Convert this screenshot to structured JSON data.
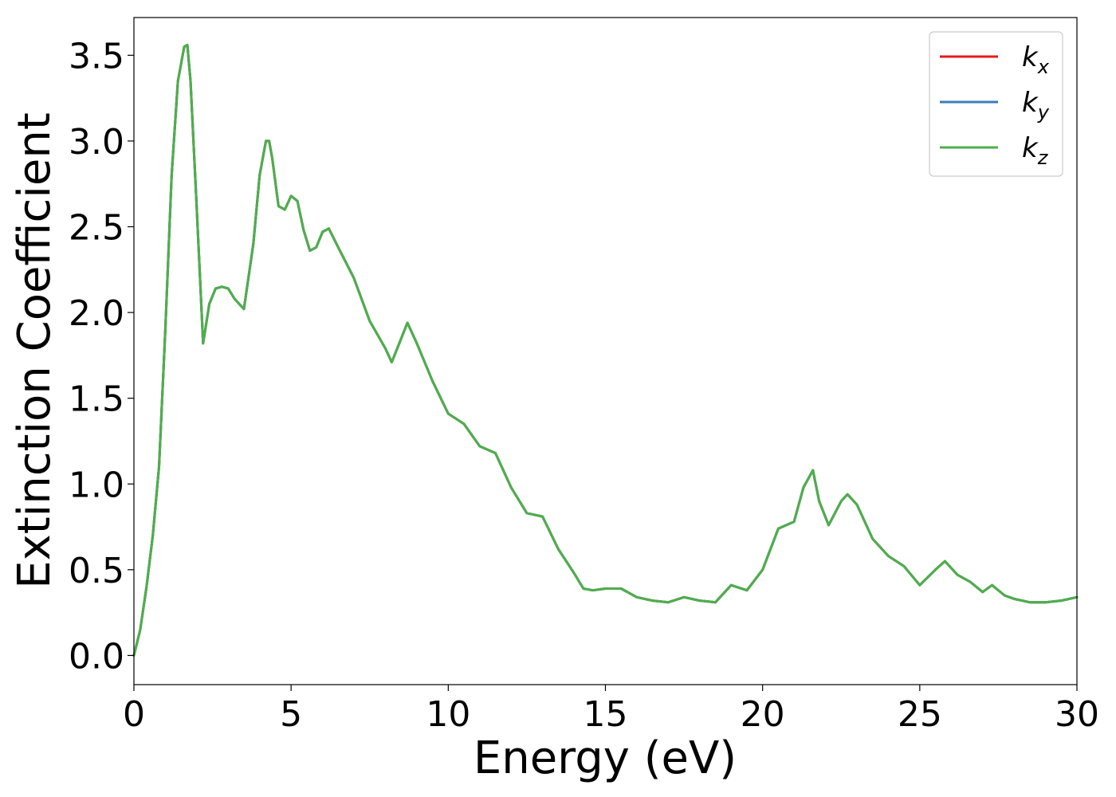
{
  "chart_data": {
    "type": "line",
    "title": "",
    "xlabel": "Energy (eV)",
    "ylabel": "Extinction Coefficient",
    "xlim": [
      0,
      30
    ],
    "ylim": [
      -0.17,
      3.72
    ],
    "xticks": [
      0,
      5,
      10,
      15,
      20,
      25,
      30
    ],
    "xtick_labels": [
      "0",
      "5",
      "10",
      "15",
      "20",
      "25",
      "30"
    ],
    "yticks": [
      0.0,
      0.5,
      1.0,
      1.5,
      2.0,
      2.5,
      3.0,
      3.5
    ],
    "ytick_labels": [
      "0.0",
      "0.5",
      "1.0",
      "1.5",
      "2.0",
      "2.5",
      "3.0",
      "3.5"
    ],
    "grid": false,
    "legend_position": "top-right",
    "x": [
      0,
      0.2,
      0.4,
      0.6,
      0.8,
      1.0,
      1.2,
      1.4,
      1.6,
      1.7,
      1.8,
      2.0,
      2.2,
      2.4,
      2.6,
      2.8,
      3.0,
      3.2,
      3.5,
      3.8,
      4.0,
      4.2,
      4.3,
      4.4,
      4.6,
      4.8,
      5.0,
      5.2,
      5.4,
      5.6,
      5.8,
      6.0,
      6.2,
      6.5,
      7.0,
      7.5,
      8.0,
      8.2,
      8.4,
      8.7,
      9.0,
      9.5,
      10.0,
      10.5,
      11.0,
      11.5,
      12.0,
      12.5,
      13.0,
      13.5,
      14.0,
      14.3,
      14.6,
      15.0,
      15.5,
      16.0,
      16.5,
      17.0,
      17.5,
      18.0,
      18.5,
      19.0,
      19.5,
      20.0,
      20.5,
      21.0,
      21.3,
      21.6,
      21.8,
      22.1,
      22.5,
      22.7,
      23.0,
      23.5,
      24.0,
      24.5,
      25.0,
      25.5,
      25.8,
      26.2,
      26.6,
      27.0,
      27.3,
      27.7,
      28.0,
      28.5,
      29.0,
      29.5,
      30.0
    ],
    "series": [
      {
        "name": "k_x",
        "color": "#e41a1c",
        "values": [
          0.0,
          0.15,
          0.4,
          0.7,
          1.1,
          1.9,
          2.8,
          3.35,
          3.55,
          3.56,
          3.35,
          2.6,
          1.82,
          2.05,
          2.14,
          2.15,
          2.14,
          2.08,
          2.02,
          2.4,
          2.8,
          3.0,
          3.0,
          2.9,
          2.62,
          2.6,
          2.68,
          2.65,
          2.48,
          2.36,
          2.38,
          2.47,
          2.49,
          2.38,
          2.2,
          1.95,
          1.79,
          1.71,
          1.8,
          1.94,
          1.82,
          1.6,
          1.41,
          1.35,
          1.22,
          1.18,
          0.98,
          0.83,
          0.81,
          0.62,
          0.48,
          0.39,
          0.38,
          0.39,
          0.39,
          0.34,
          0.32,
          0.31,
          0.34,
          0.32,
          0.31,
          0.41,
          0.38,
          0.5,
          0.74,
          0.78,
          0.98,
          1.08,
          0.9,
          0.76,
          0.9,
          0.94,
          0.88,
          0.68,
          0.58,
          0.52,
          0.41,
          0.5,
          0.55,
          0.47,
          0.43,
          0.37,
          0.41,
          0.35,
          0.33,
          0.31,
          0.31,
          0.32,
          0.34
        ]
      },
      {
        "name": "k_y",
        "color": "#377eb8",
        "values": [
          0.0,
          0.15,
          0.4,
          0.7,
          1.1,
          1.9,
          2.8,
          3.35,
          3.55,
          3.56,
          3.35,
          2.6,
          1.82,
          2.05,
          2.14,
          2.15,
          2.14,
          2.08,
          2.02,
          2.4,
          2.8,
          3.0,
          3.0,
          2.9,
          2.62,
          2.6,
          2.68,
          2.65,
          2.48,
          2.36,
          2.38,
          2.47,
          2.49,
          2.38,
          2.2,
          1.95,
          1.79,
          1.71,
          1.8,
          1.94,
          1.82,
          1.6,
          1.41,
          1.35,
          1.22,
          1.18,
          0.98,
          0.83,
          0.81,
          0.62,
          0.48,
          0.39,
          0.38,
          0.39,
          0.39,
          0.34,
          0.32,
          0.31,
          0.34,
          0.32,
          0.31,
          0.41,
          0.38,
          0.5,
          0.74,
          0.78,
          0.98,
          1.08,
          0.9,
          0.76,
          0.9,
          0.94,
          0.88,
          0.68,
          0.58,
          0.52,
          0.41,
          0.5,
          0.55,
          0.47,
          0.43,
          0.37,
          0.41,
          0.35,
          0.33,
          0.31,
          0.31,
          0.32,
          0.34
        ]
      },
      {
        "name": "k_z",
        "color": "#4daf4a",
        "values": [
          0.0,
          0.15,
          0.4,
          0.7,
          1.1,
          1.9,
          2.8,
          3.35,
          3.55,
          3.56,
          3.35,
          2.6,
          1.82,
          2.05,
          2.14,
          2.15,
          2.14,
          2.08,
          2.02,
          2.4,
          2.8,
          3.0,
          3.0,
          2.9,
          2.62,
          2.6,
          2.68,
          2.65,
          2.48,
          2.36,
          2.38,
          2.47,
          2.49,
          2.38,
          2.2,
          1.95,
          1.79,
          1.71,
          1.8,
          1.94,
          1.82,
          1.6,
          1.41,
          1.35,
          1.22,
          1.18,
          0.98,
          0.83,
          0.81,
          0.62,
          0.48,
          0.39,
          0.38,
          0.39,
          0.39,
          0.34,
          0.32,
          0.31,
          0.34,
          0.32,
          0.31,
          0.41,
          0.38,
          0.5,
          0.74,
          0.78,
          0.98,
          1.08,
          0.9,
          0.76,
          0.9,
          0.94,
          0.88,
          0.68,
          0.58,
          0.52,
          0.41,
          0.5,
          0.55,
          0.47,
          0.43,
          0.37,
          0.41,
          0.35,
          0.33,
          0.31,
          0.31,
          0.32,
          0.34
        ]
      }
    ],
    "legend": [
      {
        "base": "k",
        "sub": "x",
        "color": "#e41a1c"
      },
      {
        "base": "k",
        "sub": "y",
        "color": "#377eb8"
      },
      {
        "base": "k",
        "sub": "z",
        "color": "#4daf4a"
      }
    ]
  }
}
